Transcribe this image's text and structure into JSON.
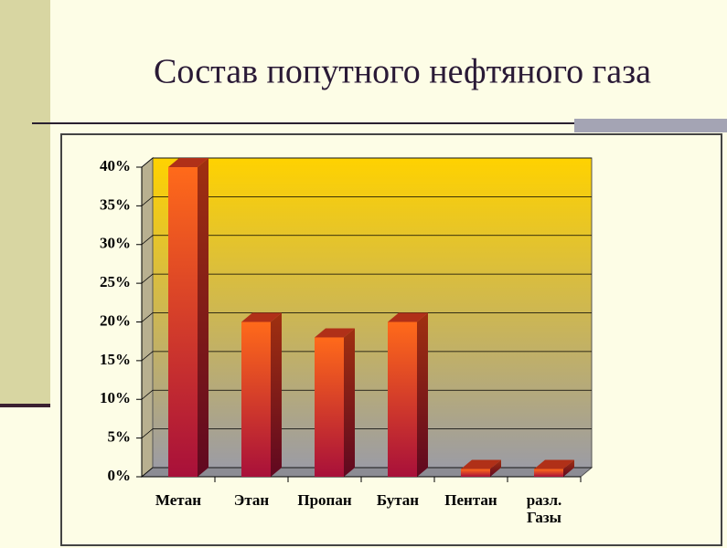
{
  "chart_data": {
    "type": "bar",
    "title": "Состав попутного нефтяного газа",
    "categories": [
      "Метан",
      "Этан",
      "Пропан",
      "Бутан",
      "Пентан",
      "разл. Газы"
    ],
    "values": [
      40,
      20,
      18,
      20,
      1,
      1
    ],
    "ylim": [
      0,
      40
    ],
    "yticks": [
      {
        "value": 0,
        "label": "0%"
      },
      {
        "value": 5,
        "label": "5%"
      },
      {
        "value": 10,
        "label": "10%"
      },
      {
        "value": 15,
        "label": "15%"
      },
      {
        "value": 20,
        "label": "20%"
      },
      {
        "value": 25,
        "label": "25%"
      },
      {
        "value": 30,
        "label": "30%"
      },
      {
        "value": 35,
        "label": "35%"
      },
      {
        "value": 40,
        "label": "40%"
      }
    ],
    "grid": true
  }
}
